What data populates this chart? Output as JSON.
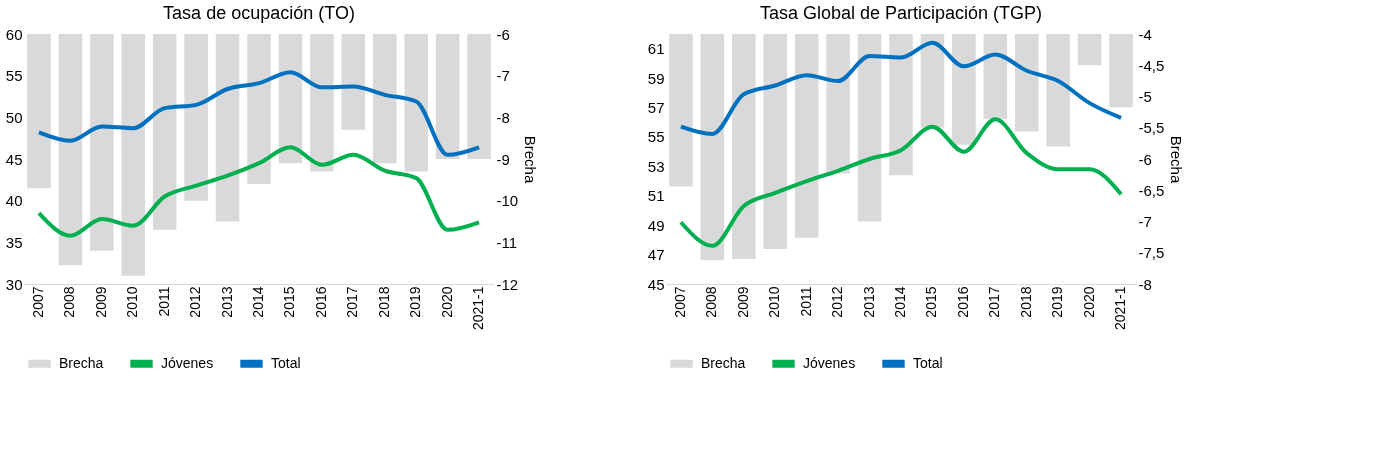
{
  "chart_data": [
    {
      "type": "line",
      "title": "Tasa de ocupación (TO)",
      "y2label": "Brecha",
      "categories": [
        "2007",
        "2008",
        "2009",
        "2010",
        "2011",
        "2012",
        "2013",
        "2014",
        "2015",
        "2016",
        "2017",
        "2018",
        "2019",
        "2020",
        "2021-1"
      ],
      "ylim": [
        30,
        60
      ],
      "yticks": [
        30,
        35,
        40,
        45,
        50,
        55,
        60
      ],
      "y2lim": [
        -12,
        -6
      ],
      "y2ticks": [
        -12,
        -11,
        -10,
        -9,
        -8,
        -7,
        -6
      ],
      "series": [
        {
          "name": "Brecha",
          "type": "bar",
          "axis": "y2",
          "color": "#d9d9d9",
          "values": [
            -9.7,
            -11.55,
            -11.2,
            -11.8,
            -10.7,
            -10.0,
            -10.5,
            -9.6,
            -9.1,
            -9.3,
            -8.3,
            -9.1,
            -9.3,
            -9.0,
            -9.0
          ]
        },
        {
          "name": "Jóvenes",
          "color": "#00b050",
          "values": [
            38.5,
            35.8,
            37.8,
            37.0,
            40.5,
            41.8,
            43.0,
            44.5,
            46.4,
            44.3,
            45.5,
            43.6,
            42.7,
            36.5,
            37.4
          ]
        },
        {
          "name": "Total",
          "color": "#0070c0",
          "values": [
            48.2,
            47.2,
            48.9,
            48.7,
            51.1,
            51.5,
            53.4,
            54.1,
            55.4,
            53.6,
            53.7,
            52.7,
            51.9,
            45.5,
            46.4
          ]
        }
      ],
      "legend": "bottom",
      "grid": false
    },
    {
      "type": "line",
      "title": "Tasa Global de Participación (TGP)",
      "y2label": "Brecha",
      "categories": [
        "2007",
        "2008",
        "2009",
        "2010",
        "2011",
        "2012",
        "2013",
        "2014",
        "2015",
        "2016",
        "2017",
        "2018",
        "2019",
        "2020",
        "2021-1"
      ],
      "ylim": [
        45,
        62
      ],
      "yticks": [
        45,
        47,
        49,
        51,
        53,
        55,
        57,
        59,
        61
      ],
      "y2lim": [
        -8,
        -4
      ],
      "y2ticks": [
        -8,
        {
          "value": -7.5,
          "label": "-7,5"
        },
        -7,
        {
          "value": -6.5,
          "label": "-6,5"
        },
        -6,
        {
          "value": -5.5,
          "label": "-5,5"
        },
        -5,
        {
          "value": -4.5,
          "label": "-4,5"
        },
        -4
      ],
      "series": [
        {
          "name": "Brecha",
          "type": "bar",
          "axis": "y2",
          "color": "#d9d9d9",
          "values": [
            -6.44,
            -7.62,
            -7.6,
            -7.44,
            -7.26,
            -6.23,
            -7.0,
            -6.26,
            -5.5,
            -5.77,
            -5.36,
            -5.56,
            -5.8,
            -4.5,
            -5.17
          ]
        },
        {
          "name": "Jóvenes",
          "color": "#00b050",
          "values": [
            49.2,
            47.6,
            50.3,
            51.2,
            52.0,
            52.7,
            53.5,
            54.1,
            55.7,
            54.0,
            56.2,
            53.9,
            52.8,
            52.8,
            51.1
          ]
        },
        {
          "name": "Total",
          "color": "#0070c0",
          "values": [
            55.7,
            55.2,
            57.9,
            58.5,
            59.2,
            58.8,
            60.5,
            60.4,
            61.4,
            59.8,
            60.6,
            59.5,
            58.8,
            57.3,
            56.3
          ]
        }
      ],
      "legend": "bottom",
      "grid": false
    }
  ]
}
